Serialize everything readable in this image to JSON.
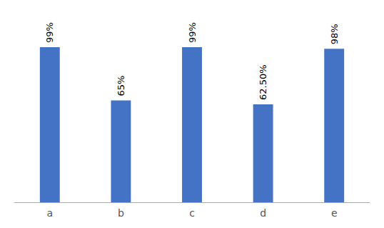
{
  "chart_data": {
    "type": "bar",
    "categories": [
      "a",
      "b",
      "c",
      "d",
      "e"
    ],
    "values": [
      99,
      65,
      99,
      62.5,
      98
    ],
    "value_labels": [
      "99%",
      "65%",
      "99%",
      "62.50%",
      "98%"
    ],
    "data_labels": true,
    "color": "#4472C4",
    "ylim": [
      0,
      120
    ],
    "grid": false,
    "tick_labels": "x"
  }
}
